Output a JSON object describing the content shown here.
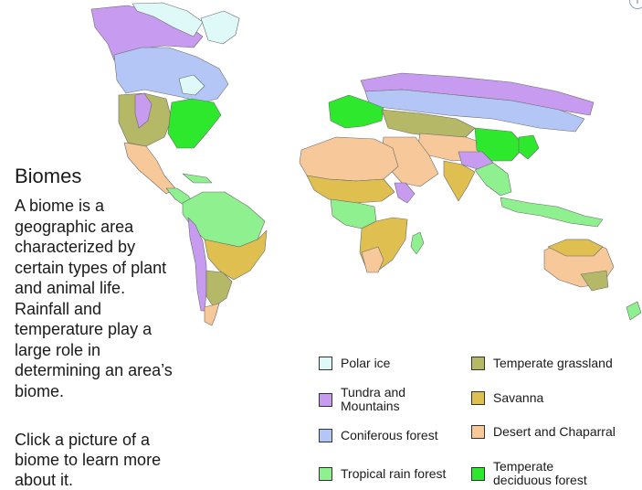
{
  "title": "Biomes",
  "description": "A biome is a geographic area characterized by certain types of plant and animal life. Rainfall and temperature play a large role in determining an area’s biome.",
  "instruction": "Click a picture of a biome to learn more about it.",
  "help_icon": "info-icon",
  "colors": {
    "ocean": "#ffffff",
    "outline": "#6a6a6a"
  },
  "legend": [
    {
      "id": "polar-ice",
      "label": "Polar ice",
      "color": "#dff8f8"
    },
    {
      "id": "tundra",
      "label": "Tundra and Mountains",
      "color": "#c79cf0"
    },
    {
      "id": "coniferous",
      "label": "Coniferous forest",
      "color": "#b4c6f5"
    },
    {
      "id": "tropical",
      "label": "Tropical rain forest",
      "color": "#8ef08e"
    },
    {
      "id": "temperate-grassland",
      "label": "Temperate grassland",
      "color": "#b5b866"
    },
    {
      "id": "savanna",
      "label": "Savanna",
      "color": "#dfbf4f"
    },
    {
      "id": "desert",
      "label": "Desert and Chaparral",
      "color": "#f7c89a"
    },
    {
      "id": "temperate-deciduous",
      "label": "Temperate deciduous forest",
      "color": "#2ee82e"
    }
  ]
}
